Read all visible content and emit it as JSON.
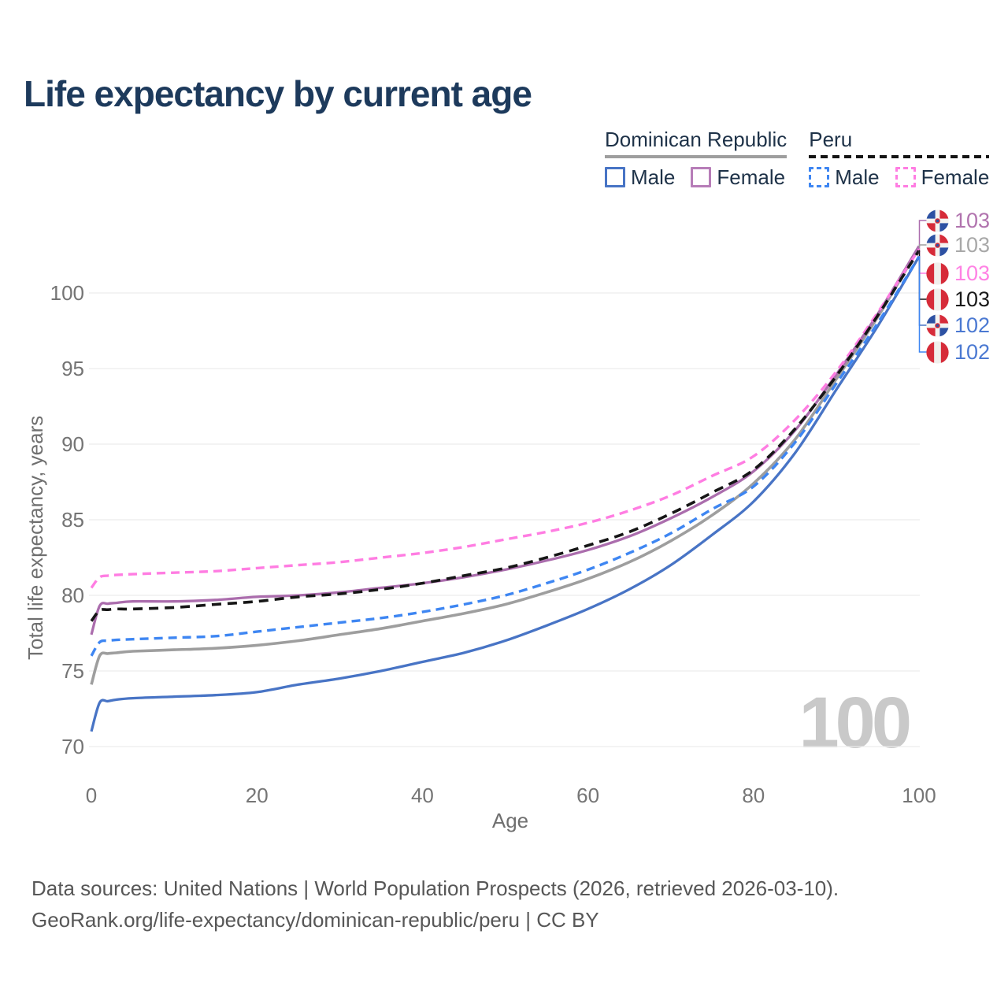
{
  "title": "Life expectancy by current age",
  "legend": {
    "groups": [
      {
        "country": "Dominican Republic",
        "line_style": "solid",
        "underline_color": "#9e9e9e",
        "items": [
          {
            "label": "Male",
            "color": "#4874c5"
          },
          {
            "label": "Female",
            "color": "#b77db8"
          }
        ]
      },
      {
        "country": "Peru",
        "line_style": "dashed",
        "underline_color": "#141414",
        "items": [
          {
            "label": "Male",
            "color": "#3e86f2"
          },
          {
            "label": "Female",
            "color": "#ff7de2"
          }
        ]
      }
    ]
  },
  "chart_data": {
    "type": "line",
    "title": "Life expectancy by current age",
    "xlabel": "Age",
    "ylabel": "Total life expectancy, years",
    "xlim": [
      0,
      100
    ],
    "ylim": [
      70,
      103.5
    ],
    "xticks": [
      0,
      20,
      40,
      60,
      80,
      100
    ],
    "yticks": [
      70,
      75,
      80,
      85,
      90,
      95,
      100
    ],
    "grid": "horizontal",
    "legend_position": "top-right",
    "watermark": "100",
    "x_ages": [
      0,
      1,
      2,
      3,
      5,
      10,
      15,
      20,
      25,
      30,
      35,
      40,
      45,
      50,
      55,
      60,
      65,
      70,
      75,
      80,
      85,
      90,
      95,
      100
    ],
    "series": [
      {
        "key": "dr_total",
        "name": "Dominican Republic",
        "sex": "Both sexes",
        "color": "#9e9e9e",
        "dash": null,
        "width": 3.6,
        "values": [
          74.1,
          76.0,
          76.15,
          76.2,
          76.3,
          76.4,
          76.5,
          76.7,
          77.0,
          77.4,
          77.8,
          78.3,
          78.8,
          79.4,
          80.2,
          81.1,
          82.2,
          83.6,
          85.3,
          87.4,
          90.3,
          94.3,
          98.4,
          103.0
        ]
      },
      {
        "key": "dr_female",
        "name": "Dominican Republic",
        "sex": "Female",
        "color": "#ab6dad",
        "dash": null,
        "width": 3.3,
        "values": [
          77.4,
          79.3,
          79.45,
          79.5,
          79.6,
          79.6,
          79.7,
          79.9,
          80.0,
          80.2,
          80.5,
          80.8,
          81.2,
          81.7,
          82.3,
          83.0,
          83.9,
          85.1,
          86.5,
          88.2,
          90.9,
          94.6,
          98.6,
          103.1
        ]
      },
      {
        "key": "dr_male",
        "name": "Dominican Republic",
        "sex": "Male",
        "color": "#4874c5",
        "dash": null,
        "width": 3.3,
        "values": [
          71.0,
          72.9,
          73.0,
          73.1,
          73.2,
          73.3,
          73.4,
          73.6,
          74.1,
          74.5,
          75.0,
          75.6,
          76.2,
          77.0,
          78.0,
          79.1,
          80.4,
          82.0,
          84.0,
          86.2,
          89.4,
          93.6,
          97.8,
          102.4
        ]
      },
      {
        "key": "peru_female",
        "name": "Peru",
        "sex": "Female",
        "color": "#ff7de2",
        "dash": "11 7",
        "width": 3.4,
        "values": [
          80.5,
          81.2,
          81.3,
          81.35,
          81.4,
          81.5,
          81.6,
          81.8,
          82.0,
          82.2,
          82.5,
          82.8,
          83.2,
          83.7,
          84.2,
          84.8,
          85.6,
          86.6,
          87.9,
          89.2,
          91.6,
          94.8,
          98.7,
          102.9
        ]
      },
      {
        "key": "peru_total",
        "name": "Peru",
        "sex": "Both sexes",
        "color": "#161616",
        "dash": "12 8",
        "width": 3.6,
        "values": [
          78.3,
          79.0,
          79.05,
          79.1,
          79.1,
          79.2,
          79.4,
          79.6,
          79.9,
          80.1,
          80.4,
          80.8,
          81.3,
          81.8,
          82.5,
          83.3,
          84.2,
          85.4,
          86.8,
          88.3,
          91.0,
          94.5,
          98.5,
          102.8
        ]
      },
      {
        "key": "peru_male",
        "name": "Peru",
        "sex": "Male",
        "color": "#3e86f2",
        "dash": "11 7",
        "width": 3.4,
        "values": [
          76.0,
          76.9,
          77.0,
          77.05,
          77.1,
          77.2,
          77.3,
          77.6,
          77.9,
          78.2,
          78.5,
          78.9,
          79.4,
          80.0,
          80.8,
          81.7,
          82.8,
          84.1,
          85.7,
          87.2,
          90.1,
          94.0,
          98.0,
          102.4
        ]
      }
    ],
    "end_labels": [
      {
        "country": "Dominican Republic",
        "sex": "Female",
        "flag": "dominican-republic",
        "value": "103",
        "color": "#b173ae",
        "series_key": "dr_female"
      },
      {
        "country": "Dominican Republic",
        "sex": "Both sexes",
        "flag": "dominican-republic",
        "value": "103",
        "color": "#a8a8a8",
        "series_key": "dr_total"
      },
      {
        "country": "Peru",
        "sex": "Female",
        "flag": "peru",
        "value": "103",
        "color": "#ff82e4",
        "series_key": "peru_female"
      },
      {
        "country": "Peru",
        "sex": "Both sexes",
        "flag": "peru",
        "value": "103",
        "color": "#1a1a1a",
        "series_key": "peru_total"
      },
      {
        "country": "Dominican Republic",
        "sex": "Male",
        "flag": "dominican-republic",
        "value": "102",
        "color": "#4b79d2",
        "series_key": "dr_male"
      },
      {
        "country": "Peru",
        "sex": "Male",
        "flag": "peru",
        "value": "102",
        "color": "#4b79d2",
        "series_key": "peru_male"
      }
    ]
  },
  "footer": {
    "line1": "Data sources: United Nations | World Population Prospects (2026, retrieved 2026-03-10).",
    "line2": "GeoRank.org/life-expectancy/dominican-republic/peru | CC BY"
  }
}
